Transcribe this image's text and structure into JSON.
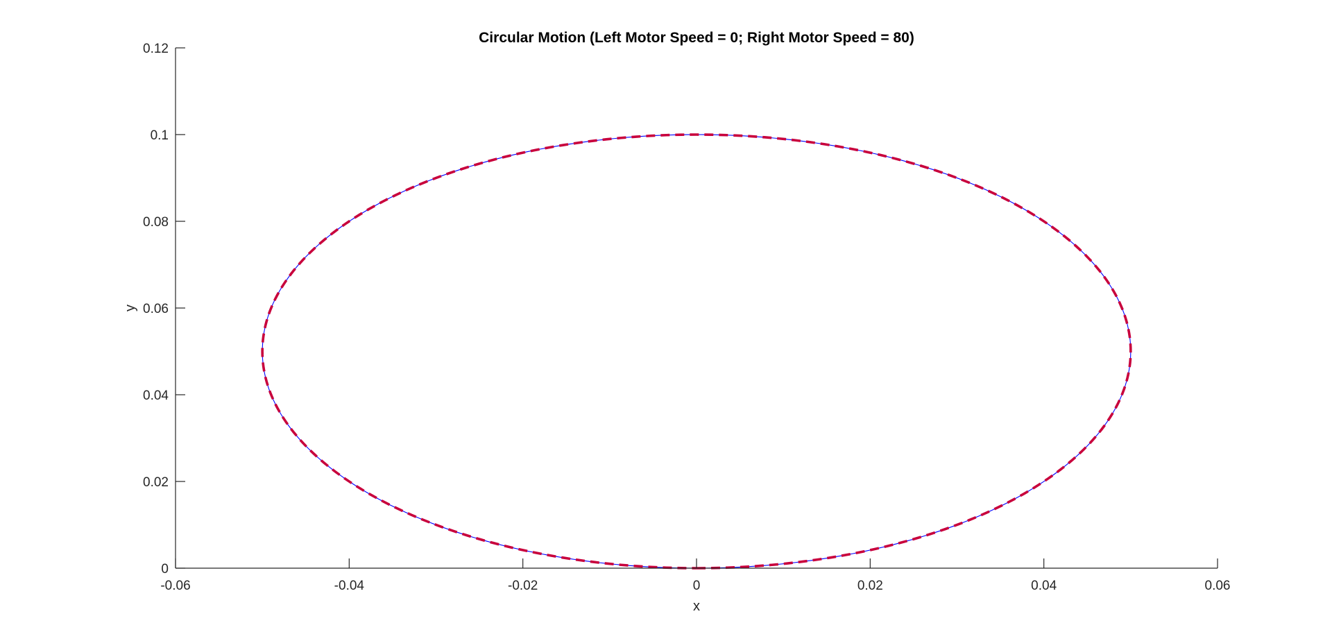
{
  "chart_data": {
    "type": "line",
    "title": "Circular Motion (Left Motor Speed = 0; Right Motor Speed = 80)",
    "xlabel": "x",
    "ylabel": "y",
    "xlim": [
      -0.06,
      0.06
    ],
    "ylim": [
      0,
      0.12
    ],
    "xticks": [
      -0.06,
      -0.04,
      -0.02,
      0,
      0.02,
      0.04,
      0.06
    ],
    "xtick_labels": [
      "-0.06",
      "-0.04",
      "-0.02",
      "0",
      "0.02",
      "0.04",
      "0.06"
    ],
    "yticks": [
      0,
      0.02,
      0.04,
      0.06,
      0.08,
      0.1,
      0.12
    ],
    "ytick_labels": [
      "0",
      "0.02",
      "0.04",
      "0.06",
      "0.08",
      "0.1",
      "0.12"
    ],
    "grid": false,
    "series": [
      {
        "style": "solid",
        "color": "#0000ff",
        "shape": "circle",
        "center": [
          0,
          0.05
        ],
        "radius": 0.05
      },
      {
        "style": "dashed",
        "color": "#c8003c",
        "shape": "circle",
        "center": [
          0,
          0.05
        ],
        "radius": 0.05
      }
    ]
  }
}
